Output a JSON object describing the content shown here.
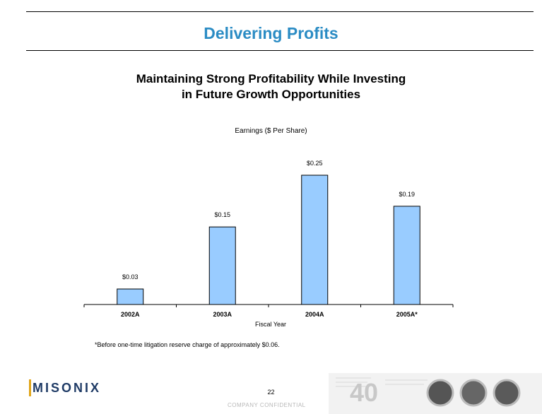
{
  "header": {
    "title": "Delivering Profits"
  },
  "subtitle_lines": [
    "Maintaining Strong Profitability While Investing",
    "in Future Growth Opportunities"
  ],
  "chart_data": {
    "type": "bar",
    "title": "Earnings ($ Per Share)",
    "xlabel": "Fiscal Year",
    "ylabel": "",
    "categories": [
      "2002A",
      "2003A",
      "2004A",
      "2005A*"
    ],
    "values": [
      0.03,
      0.15,
      0.25,
      0.19
    ],
    "data_labels": [
      "$0.03",
      "$0.15",
      "$0.25",
      "$0.19"
    ],
    "ylim": [
      0,
      0.25
    ],
    "bar_color": "#99ccff",
    "grid": false,
    "legend": "none"
  },
  "footnote": "*Before one-time litigation reserve charge of approximately $0.06.",
  "footer": {
    "page_number": "22",
    "confidential": "COMPANY CONFIDENTIAL",
    "logo_text": "MISONIX",
    "anniversary": "40"
  },
  "colors": {
    "title": "#2b8cc4",
    "bar": "#99ccff",
    "logo": "#1f3b66"
  }
}
